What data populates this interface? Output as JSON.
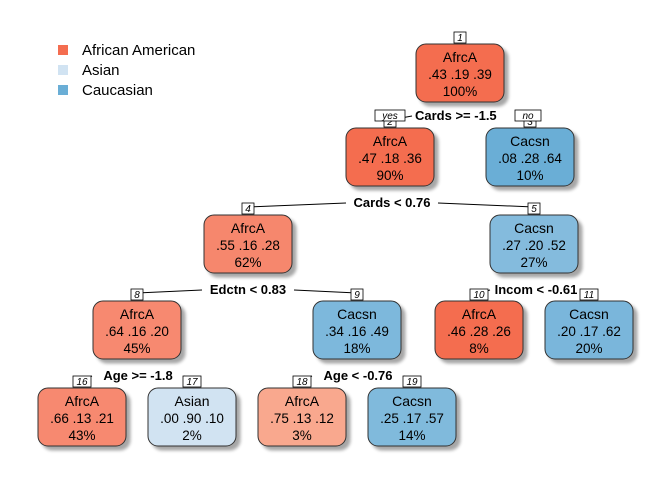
{
  "legend": [
    {
      "label": "African American",
      "color": "#F46D50"
    },
    {
      "label": "Asian",
      "color": "#D1E3F2"
    },
    {
      "label": "Caucasian",
      "color": "#6AAED6"
    }
  ],
  "branch_labels": {
    "yes": "yes",
    "no": "no"
  },
  "nodes": [
    {
      "id": "1",
      "class": "AfrcA",
      "probs": ".43  .19  .39",
      "pct": "100%",
      "color": "#F46D50"
    },
    {
      "id": "2",
      "class": "AfrcA",
      "probs": ".47  .18  .36",
      "pct": "90%",
      "color": "#F46D50"
    },
    {
      "id": "3",
      "class": "Cacsn",
      "probs": ".08  .28  .64",
      "pct": "10%",
      "color": "#6AAED6"
    },
    {
      "id": "4",
      "class": "AfrcA",
      "probs": ".55  .16  .28",
      "pct": "62%",
      "color": "#F6876D"
    },
    {
      "id": "5",
      "class": "Cacsn",
      "probs": ".27  .20  .52",
      "pct": "27%",
      "color": "#84BBDD"
    },
    {
      "id": "8",
      "class": "AfrcA",
      "probs": ".64  .16  .20",
      "pct": "45%",
      "color": "#F7896F"
    },
    {
      "id": "9",
      "class": "Cacsn",
      "probs": ".34  .16  .49",
      "pct": "18%",
      "color": "#7DB8DC"
    },
    {
      "id": "10",
      "class": "AfrcA",
      "probs": ".46  .28  .26",
      "pct": "8%",
      "color": "#F46D50"
    },
    {
      "id": "11",
      "class": "Cacsn",
      "probs": ".20  .17  .62",
      "pct": "20%",
      "color": "#7AB6DB"
    },
    {
      "id": "16",
      "class": "AfrcA",
      "probs": ".66  .13  .21",
      "pct": "43%",
      "color": "#F7896F"
    },
    {
      "id": "17",
      "class": "Asian",
      "probs": ".00  .90  .10",
      "pct": "2%",
      "color": "#D1E3F2"
    },
    {
      "id": "18",
      "class": "AfrcA",
      "probs": ".75  .13  .12",
      "pct": "3%",
      "color": "#F9A88E"
    },
    {
      "id": "19",
      "class": "Cacsn",
      "probs": ".25  .17  .57",
      "pct": "14%",
      "color": "#80BADC"
    }
  ],
  "splits": [
    {
      "node": "1",
      "label": "Cards >= -1.5"
    },
    {
      "node": "2",
      "label": "Cards < 0.76"
    },
    {
      "node": "4",
      "label": "Edctn < 0.83"
    },
    {
      "node": "5",
      "label": "Incom < -0.61"
    },
    {
      "node": "8",
      "label": "Age >= -1.8"
    },
    {
      "node": "9",
      "label": "Age < -0.76"
    }
  ]
}
